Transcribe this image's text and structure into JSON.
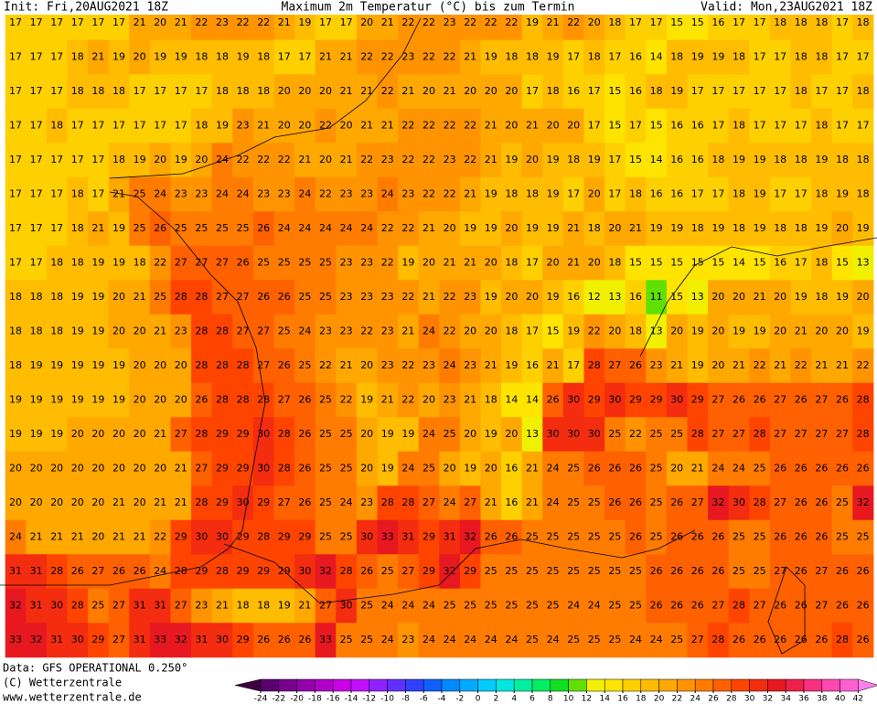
{
  "header": {
    "init": "Init: Fri,20AUG2021 18Z",
    "title": "Maximum 2m Temperatur (°C) bis zum Termin",
    "valid": "Valid: Mon,23AUG2021 18Z"
  },
  "footer": {
    "data": "Data: GFS OPERATIONAL 0.250°",
    "copyright": "(C) Wetterzentrale",
    "url": "www.wetterzentrale.de"
  },
  "map": {
    "rows": [
      [
        17,
        17,
        17,
        17,
        17,
        17,
        21,
        20,
        21,
        22,
        23,
        22,
        22,
        21,
        19,
        17,
        17,
        20,
        21,
        22,
        22,
        23,
        22,
        22,
        22,
        19,
        21,
        22,
        20,
        18,
        17,
        17,
        15,
        15,
        16,
        17,
        17,
        18,
        18,
        18,
        17,
        18
      ],
      [
        17,
        17,
        17,
        18,
        21,
        19,
        20,
        19,
        19,
        18,
        18,
        19,
        18,
        17,
        17,
        21,
        21,
        22,
        22,
        23,
        22,
        22,
        21,
        19,
        18,
        18,
        19,
        17,
        18,
        17,
        16,
        14,
        18,
        19,
        19,
        18,
        17,
        17,
        18,
        18,
        17,
        17
      ],
      [
        17,
        17,
        17,
        18,
        18,
        18,
        17,
        17,
        17,
        17,
        18,
        18,
        18,
        20,
        20,
        20,
        21,
        21,
        22,
        21,
        20,
        21,
        20,
        20,
        20,
        17,
        18,
        16,
        17,
        15,
        16,
        18,
        19,
        17,
        17,
        17,
        17,
        17,
        18,
        17,
        17,
        18
      ],
      [
        17,
        17,
        18,
        17,
        17,
        17,
        17,
        17,
        17,
        18,
        19,
        23,
        21,
        20,
        20,
        22,
        20,
        21,
        21,
        22,
        22,
        22,
        22,
        21,
        20,
        21,
        20,
        20,
        17,
        15,
        17,
        15,
        16,
        16,
        17,
        18,
        17,
        17,
        17,
        18,
        17,
        17
      ],
      [
        17,
        17,
        17,
        17,
        17,
        18,
        19,
        20,
        19,
        20,
        24,
        22,
        22,
        22,
        21,
        20,
        21,
        22,
        23,
        22,
        22,
        23,
        22,
        21,
        19,
        20,
        19,
        18,
        19,
        17,
        15,
        14,
        16,
        16,
        18,
        19,
        19,
        18,
        18,
        19,
        18,
        18
      ],
      [
        17,
        17,
        17,
        18,
        17,
        21,
        25,
        24,
        23,
        23,
        24,
        24,
        23,
        23,
        24,
        22,
        23,
        23,
        24,
        23,
        22,
        22,
        21,
        19,
        18,
        18,
        19,
        17,
        20,
        17,
        18,
        16,
        16,
        17,
        17,
        18,
        19,
        17,
        17,
        18,
        19,
        18
      ],
      [
        17,
        17,
        17,
        18,
        21,
        19,
        25,
        26,
        25,
        25,
        25,
        25,
        26,
        24,
        24,
        24,
        24,
        24,
        22,
        22,
        21,
        20,
        19,
        19,
        20,
        19,
        19,
        21,
        18,
        20,
        21,
        19,
        19,
        18,
        19,
        18,
        19,
        18,
        18,
        19,
        20,
        19
      ],
      [
        17,
        17,
        18,
        18,
        19,
        19,
        18,
        22,
        27,
        27,
        27,
        26,
        25,
        25,
        25,
        25,
        23,
        23,
        22,
        19,
        20,
        21,
        21,
        20,
        18,
        17,
        20,
        21,
        20,
        18,
        15,
        15,
        15,
        15,
        15,
        14,
        15,
        16,
        17,
        18,
        15,
        13
      ],
      [
        18,
        18,
        18,
        19,
        19,
        20,
        21,
        25,
        28,
        28,
        27,
        27,
        26,
        26,
        25,
        25,
        23,
        23,
        23,
        22,
        21,
        22,
        23,
        19,
        20,
        20,
        19,
        16,
        12,
        13,
        16,
        11,
        15,
        13,
        20,
        20,
        21,
        20,
        19,
        18,
        19,
        20
      ],
      [
        18,
        18,
        18,
        19,
        19,
        20,
        20,
        21,
        23,
        28,
        28,
        27,
        27,
        25,
        24,
        23,
        23,
        22,
        23,
        21,
        24,
        22,
        20,
        20,
        18,
        17,
        15,
        19,
        22,
        20,
        18,
        13,
        20,
        19,
        20,
        19,
        19,
        20,
        21,
        20,
        20,
        19
      ],
      [
        18,
        19,
        19,
        19,
        19,
        19,
        20,
        20,
        20,
        28,
        28,
        28,
        27,
        26,
        25,
        22,
        21,
        20,
        23,
        22,
        23,
        24,
        23,
        21,
        19,
        16,
        21,
        17,
        28,
        27,
        26,
        23,
        21,
        19,
        20,
        21,
        22,
        21,
        22,
        21,
        21,
        22
      ],
      [
        19,
        19,
        19,
        19,
        19,
        19,
        20,
        20,
        20,
        26,
        28,
        28,
        28,
        27,
        26,
        25,
        22,
        19,
        21,
        22,
        20,
        23,
        21,
        18,
        14,
        14,
        26,
        30,
        29,
        30,
        29,
        29,
        30,
        29,
        27,
        26,
        26,
        27,
        26,
        27,
        26,
        28
      ],
      [
        19,
        19,
        19,
        20,
        20,
        20,
        20,
        21,
        27,
        28,
        29,
        29,
        30,
        28,
        26,
        25,
        25,
        20,
        19,
        19,
        24,
        25,
        20,
        19,
        20,
        13,
        30,
        30,
        30,
        25,
        22,
        25,
        25,
        28,
        27,
        27,
        28,
        27,
        27,
        27,
        27,
        28
      ],
      [
        20,
        20,
        20,
        20,
        20,
        20,
        20,
        20,
        21,
        27,
        29,
        29,
        30,
        28,
        26,
        25,
        25,
        20,
        19,
        24,
        25,
        20,
        19,
        20,
        16,
        21,
        24,
        25,
        26,
        26,
        26,
        25,
        20,
        21,
        24,
        24,
        25,
        26,
        26,
        26,
        26,
        26
      ],
      [
        20,
        20,
        20,
        20,
        20,
        21,
        20,
        21,
        21,
        28,
        29,
        30,
        29,
        27,
        26,
        25,
        24,
        23,
        28,
        28,
        27,
        24,
        27,
        21,
        16,
        21,
        24,
        25,
        25,
        26,
        26,
        25,
        26,
        27,
        32,
        30,
        28,
        27,
        26,
        26,
        25,
        32
      ],
      [
        24,
        21,
        21,
        21,
        20,
        21,
        21,
        22,
        29,
        30,
        30,
        29,
        28,
        29,
        29,
        25,
        25,
        30,
        33,
        31,
        29,
        31,
        32,
        26,
        26,
        25,
        25,
        25,
        25,
        25,
        26,
        25,
        26,
        26,
        26,
        25,
        25,
        26,
        26,
        26,
        25,
        25
      ],
      [
        31,
        31,
        28,
        26,
        27,
        26,
        26,
        24,
        28,
        29,
        28,
        29,
        29,
        29,
        30,
        32,
        28,
        26,
        25,
        27,
        29,
        32,
        29,
        25,
        25,
        25,
        25,
        25,
        25,
        25,
        25,
        26,
        26,
        26,
        26,
        25,
        25,
        27,
        26,
        27,
        26,
        26
      ],
      [
        32,
        31,
        30,
        28,
        25,
        27,
        31,
        31,
        27,
        23,
        21,
        18,
        18,
        19,
        21,
        27,
        30,
        25,
        24,
        24,
        24,
        25,
        25,
        25,
        25,
        25,
        25,
        24,
        24,
        25,
        25,
        26,
        26,
        26,
        27,
        28,
        27,
        26,
        26,
        27,
        26,
        26
      ],
      [
        33,
        32,
        31,
        30,
        29,
        27,
        31,
        33,
        32,
        31,
        30,
        29,
        26,
        26,
        26,
        33,
        25,
        25,
        24,
        23,
        24,
        24,
        24,
        24,
        24,
        25,
        24,
        25,
        25,
        25,
        24,
        24,
        25,
        27,
        28,
        26,
        26,
        26,
        26,
        26,
        28,
        26
      ]
    ]
  },
  "colorbar": {
    "ticks": [
      -24,
      -22,
      -20,
      -18,
      -16,
      -14,
      -12,
      -10,
      -8,
      -6,
      -4,
      -2,
      0,
      2,
      4,
      6,
      8,
      10,
      12,
      14,
      16,
      18,
      20,
      22,
      24,
      26,
      28,
      30,
      32,
      34,
      36,
      38,
      40,
      42
    ],
    "colors": [
      "#400040",
      "#5a0070",
      "#78008c",
      "#9400aa",
      "#b000c8",
      "#cc00e6",
      "#c010ff",
      "#9020ff",
      "#6030ff",
      "#3040ff",
      "#1060ff",
      "#0088ff",
      "#00aaff",
      "#00ccff",
      "#00e6e0",
      "#00f0a0",
      "#00ee60",
      "#10e020",
      "#60e000",
      "#f0f000",
      "#ffe400",
      "#ffd000",
      "#ffbc00",
      "#ffa800",
      "#ff9400",
      "#ff7c00",
      "#ff6000",
      "#ff4400",
      "#f42c10",
      "#e81820",
      "#f0204a",
      "#f83080",
      "#ff48b0",
      "#ff60d0",
      "#ff80ec"
    ]
  }
}
